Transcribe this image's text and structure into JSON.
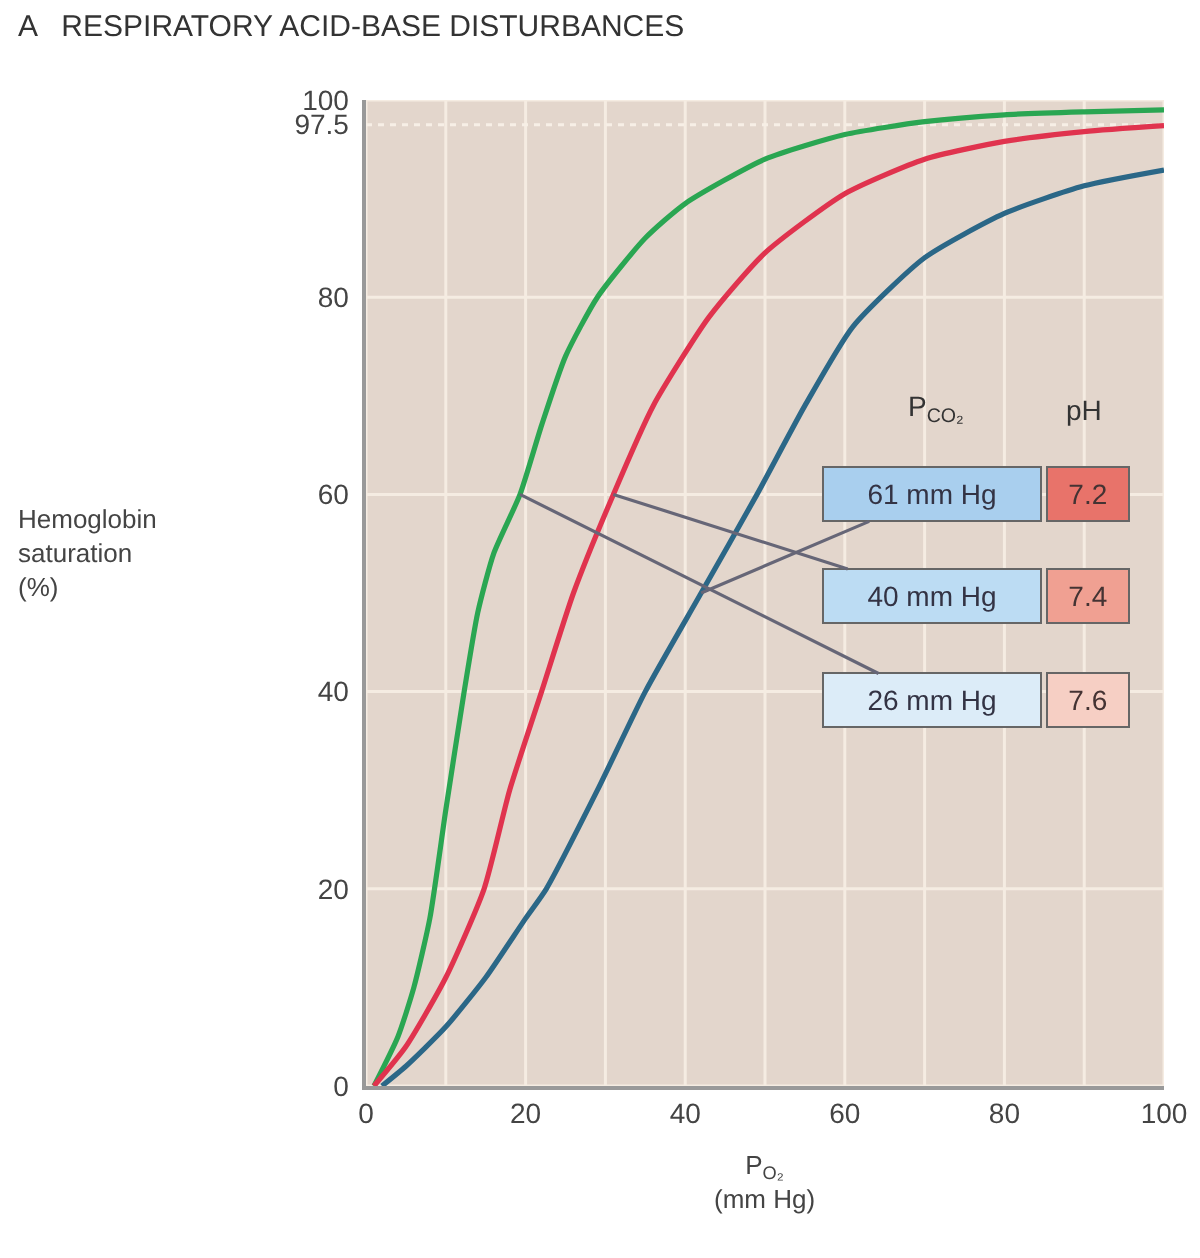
{
  "chart_data": {
    "type": "line",
    "title": "A   RESPIRATORY ACID-BASE DISTURBANCES",
    "xlabel": "P$_{O₂}$\n(mm Hg)",
    "xlim": [
      0,
      100
    ],
    "ylim": [
      0,
      100
    ],
    "xticks": [
      0,
      {
        "value": 10,
        "label": null
      },
      20,
      {
        "value": 30,
        "label": null
      },
      40,
      {
        "value": 50,
        "label": null
      },
      60,
      {
        "value": 70,
        "label": null
      },
      80,
      {
        "value": 90,
        "label": null
      },
      100
    ],
    "yticks": [
      0,
      20,
      40,
      60,
      80,
      97.5,
      100
    ],
    "grid": true,
    "marker": "none",
    "line_style": "solid",
    "ref_lines": [
      {
        "axis": "y",
        "value": 97.5,
        "line_style": "dotted",
        "color": "#f7efe6"
      }
    ],
    "series": [
      {
        "color": "#2aa652",
        "x": [
          1,
          4,
          6,
          8,
          10,
          12.3,
          14,
          16,
          19.3,
          22,
          25,
          29,
          35,
          40,
          50,
          60,
          70,
          80,
          90,
          100
        ],
        "values": [
          0,
          5,
          10,
          17,
          28,
          40,
          48,
          54,
          60,
          67,
          74,
          80,
          86,
          89.5,
          94,
          96.5,
          97.8,
          98.5,
          98.8,
          99
        ]
      },
      {
        "color": "#e0334e",
        "x": [
          1,
          5,
          10,
          14.8,
          18,
          22,
          26,
          31,
          36,
          43,
          50,
          60,
          70,
          80,
          90,
          100
        ],
        "values": [
          0,
          4,
          11,
          20,
          30,
          40,
          50,
          60,
          69,
          78,
          84.5,
          90.5,
          94,
          95.8,
          96.8,
          97.4
        ]
      },
      {
        "color": "#2b6787",
        "x": [
          2,
          5,
          10,
          15,
          20,
          22.6,
          29,
          35,
          42,
          49,
          55,
          61,
          70,
          80,
          90,
          100
        ],
        "values": [
          0,
          2,
          6,
          11,
          17,
          20,
          30,
          40,
          50,
          60,
          69,
          77,
          84,
          88.5,
          91.3,
          92.9
        ]
      }
    ],
    "annotations": [
      "Hemoglobin\nsaturation\n(%)",
      "P$_{CO₂}$",
      "pH",
      {
        "text": "61 mm Hg",
        "x": 42,
        "y": 50
      },
      "7.2",
      {
        "text": "40 mm Hg",
        "x": 31,
        "y": 60
      },
      "7.4",
      {
        "text": "26 mm Hg",
        "x": 19.3,
        "y": 60
      },
      "7.6"
    ]
  }
}
